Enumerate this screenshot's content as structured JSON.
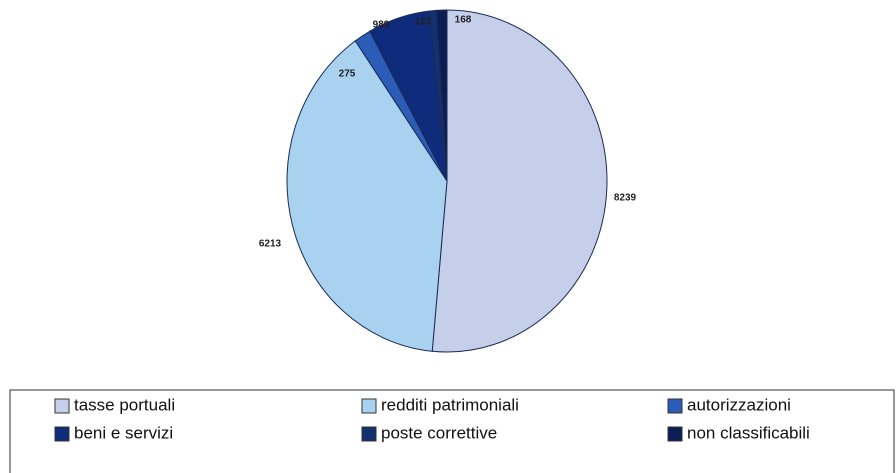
{
  "chart_data": {
    "type": "pie",
    "categories": [
      "tasse portuali",
      "redditi patrimoniali",
      "autorizzazioni",
      "beni e servizi",
      "poste correttive",
      "non classificabili"
    ],
    "values": [
      8239,
      6213,
      275,
      989,
      123,
      168
    ],
    "colors": [
      "#c6cfe9",
      "#a8d2ef",
      "#2b5cb8",
      "#0e2b7c",
      "#13306f",
      "#0b1d52"
    ],
    "legend": "bottom"
  }
}
